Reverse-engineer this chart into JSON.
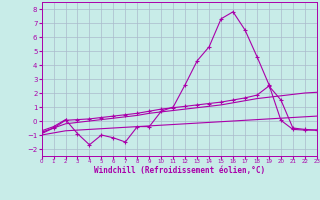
{
  "background_color": "#c8ece8",
  "grid_color": "#aabbcc",
  "line_color": "#aa00aa",
  "xlabel": "Windchill (Refroidissement éolien,°C)",
  "xlim": [
    0,
    23
  ],
  "ylim": [
    -2.5,
    8.5
  ],
  "yticks": [
    -2,
    -1,
    0,
    1,
    2,
    3,
    4,
    5,
    6,
    7,
    8
  ],
  "xticks": [
    0,
    1,
    2,
    3,
    4,
    5,
    6,
    7,
    8,
    9,
    10,
    11,
    12,
    13,
    14,
    15,
    16,
    17,
    18,
    19,
    20,
    21,
    22,
    23
  ],
  "curve1_x": [
    0,
    1,
    2,
    3,
    4,
    5,
    6,
    7,
    8,
    9,
    10,
    11,
    12,
    13,
    14,
    15,
    16,
    17,
    18,
    19,
    20,
    21,
    22,
    23
  ],
  "curve1_y": [
    -0.7,
    -0.4,
    0.1,
    -0.9,
    -1.7,
    -1.0,
    -1.2,
    -1.5,
    -0.4,
    -0.4,
    0.7,
    1.0,
    2.6,
    4.3,
    5.3,
    7.3,
    7.8,
    6.5,
    4.6,
    2.6,
    0.05,
    -0.6,
    -0.65,
    -0.65
  ],
  "curve2_x": [
    0,
    1,
    2,
    3,
    4,
    5,
    6,
    7,
    8,
    9,
    10,
    11,
    12,
    13,
    14,
    15,
    16,
    17,
    18,
    19,
    20,
    21,
    22,
    23
  ],
  "curve2_y": [
    -0.8,
    -0.5,
    0.05,
    0.1,
    0.15,
    0.25,
    0.35,
    0.45,
    0.55,
    0.7,
    0.85,
    0.95,
    1.05,
    1.15,
    1.25,
    1.35,
    1.5,
    1.65,
    1.85,
    2.5,
    1.5,
    -0.5,
    -0.6,
    -0.65
  ],
  "curve3_x": [
    0,
    1,
    2,
    3,
    4,
    5,
    6,
    7,
    8,
    9,
    10,
    11,
    12,
    13,
    14,
    15,
    16,
    17,
    18,
    19,
    20,
    21,
    22,
    23
  ],
  "curve3_y": [
    -0.9,
    -0.5,
    -0.2,
    -0.1,
    0.0,
    0.1,
    0.2,
    0.3,
    0.4,
    0.55,
    0.65,
    0.75,
    0.85,
    0.95,
    1.05,
    1.15,
    1.3,
    1.45,
    1.6,
    1.7,
    1.8,
    1.9,
    2.0,
    2.05
  ],
  "curve4_x": [
    0,
    1,
    2,
    3,
    4,
    5,
    6,
    7,
    8,
    9,
    10,
    11,
    12,
    13,
    14,
    15,
    16,
    17,
    18,
    19,
    20,
    21,
    22,
    23
  ],
  "curve4_y": [
    -1.0,
    -0.85,
    -0.7,
    -0.65,
    -0.6,
    -0.55,
    -0.5,
    -0.45,
    -0.4,
    -0.35,
    -0.3,
    -0.25,
    -0.2,
    -0.15,
    -0.1,
    -0.05,
    0.0,
    0.05,
    0.1,
    0.15,
    0.2,
    0.25,
    0.3,
    0.35
  ]
}
